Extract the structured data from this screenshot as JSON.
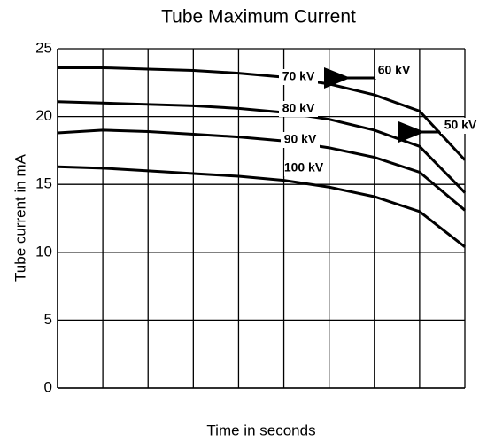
{
  "chart_data": {
    "type": "line",
    "title": "Tube Maximum Current",
    "xlabel": "Time in seconds",
    "ylabel": "Tube current in mA",
    "categories": [
      null,
      null,
      null,
      null,
      null,
      null,
      null,
      null,
      null,
      null
    ],
    "series": [
      {
        "name": "70 kV",
        "color": "#000000",
        "values": [
          23.6,
          23.6,
          23.5,
          23.4,
          23.2,
          22.9,
          22.4,
          21.6,
          20.4,
          16.8
        ]
      },
      {
        "name": "80 kV",
        "color": "#000000",
        "values": [
          21.1,
          21.0,
          20.9,
          20.8,
          20.6,
          20.3,
          19.8,
          19.0,
          17.8,
          14.4
        ]
      },
      {
        "name": "90 kV",
        "color": "#000000",
        "values": [
          18.8,
          19.0,
          18.9,
          18.7,
          18.5,
          18.2,
          17.7,
          17.0,
          15.9,
          13.1
        ]
      },
      {
        "name": "100 kV",
        "color": "#000000",
        "values": [
          16.3,
          16.2,
          16.0,
          15.8,
          15.6,
          15.3,
          14.8,
          14.1,
          13.0,
          10.4
        ]
      }
    ],
    "annotations": [
      "60 kV",
      "50 kV"
    ],
    "ylim": [
      0,
      25
    ],
    "yticks": [
      0,
      5,
      10,
      15,
      20,
      25
    ],
    "grid": true
  }
}
